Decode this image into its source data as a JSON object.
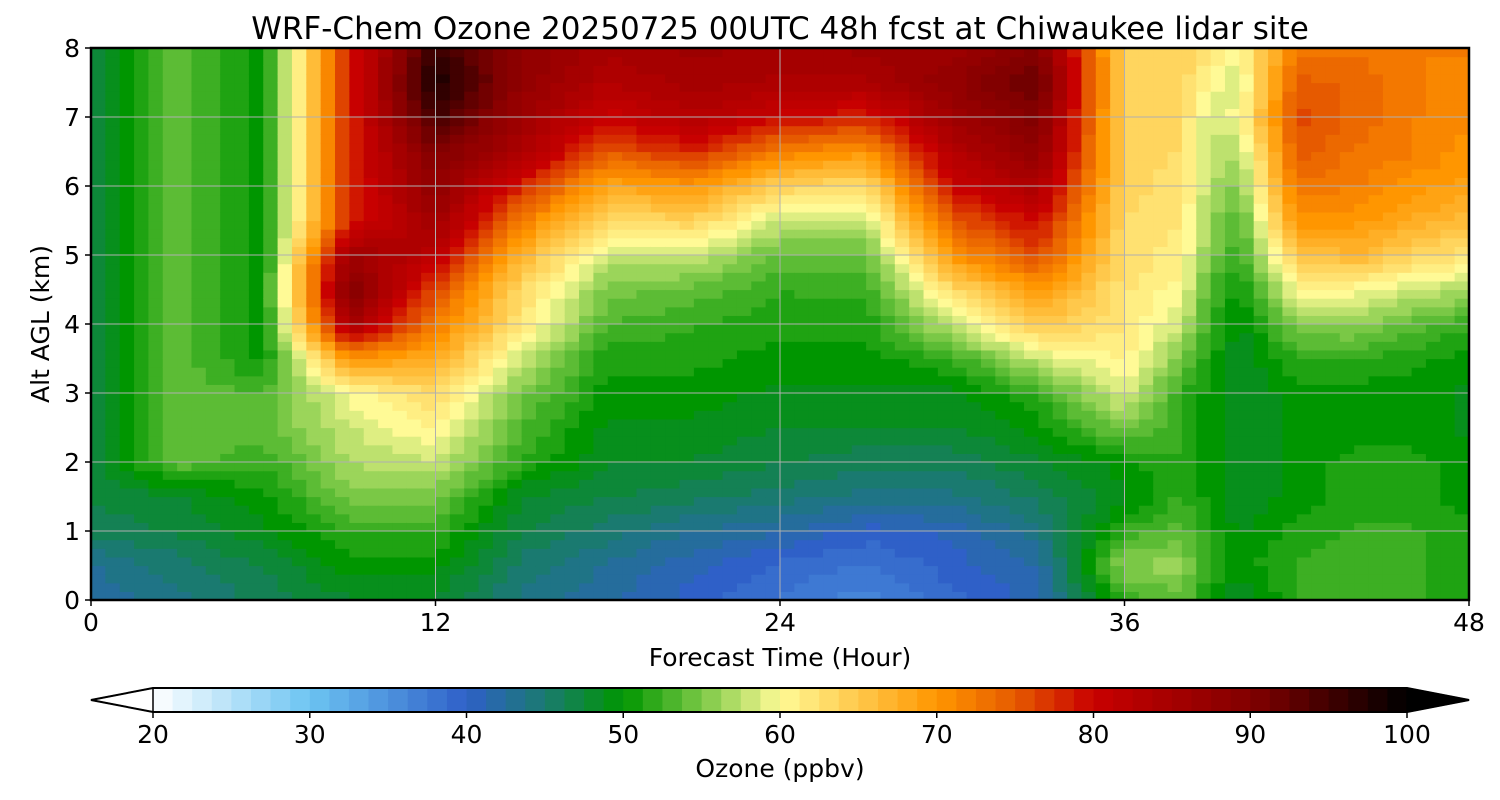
{
  "chart_data": {
    "type": "heatmap",
    "title": "WRF-Chem Ozone  20250725 00UTC 48h fcst at Chiwaukee lidar site",
    "xlabel": "Forecast Time (Hour)",
    "ylabel": "Alt AGL (km)",
    "xlim": [
      0,
      48
    ],
    "ylim": [
      0,
      8
    ],
    "xticks": [
      "0",
      "12",
      "24",
      "36",
      "48"
    ],
    "yticks": [
      "0",
      "1",
      "2",
      "3",
      "4",
      "5",
      "6",
      "7",
      "8"
    ],
    "grid": true,
    "colorbar": {
      "label": "Ozone  (ppbv)",
      "range": [
        20,
        100
      ],
      "extend": "both",
      "orientation": "horizontal",
      "ticks": [
        "20",
        "30",
        "40",
        "50",
        "60",
        "70",
        "80",
        "90",
        "100"
      ],
      "stops": [
        {
          "value": 20,
          "color": "#ffffff"
        },
        {
          "value": 30,
          "color": "#6cc4f2"
        },
        {
          "value": 40,
          "color": "#2f60c8"
        },
        {
          "value": 45,
          "color": "#1a7a70"
        },
        {
          "value": 50,
          "color": "#009600"
        },
        {
          "value": 55,
          "color": "#7ac846"
        },
        {
          "value": 60,
          "color": "#fffa96"
        },
        {
          "value": 70,
          "color": "#ff9600"
        },
        {
          "value": 75,
          "color": "#e65a00"
        },
        {
          "value": 80,
          "color": "#c80000"
        },
        {
          "value": 90,
          "color": "#820000"
        },
        {
          "value": 100,
          "color": "#000000"
        }
      ]
    },
    "x": [
      0,
      3,
      6,
      9,
      12,
      15,
      18,
      21,
      24,
      27,
      30,
      33,
      36,
      38,
      39,
      40,
      42,
      44,
      46,
      48
    ],
    "y": [
      0,
      0.5,
      1,
      1.5,
      2,
      2.5,
      3,
      3.5,
      4,
      4.5,
      5,
      5.5,
      6,
      6.5,
      7,
      7.5,
      8
    ],
    "z": [
      [
        42,
        43,
        46,
        47
      ],
      [
        44,
        45,
        47,
        48,
        54
      ],
      [
        46,
        47,
        49,
        50,
        52,
        54,
        53,
        50
      ],
      [
        48,
        50,
        52,
        55,
        57,
        58,
        60,
        70,
        85,
        90,
        86,
        78
      ],
      [
        48,
        50,
        52,
        55,
        58,
        61,
        63,
        68,
        72,
        76,
        82,
        86,
        88,
        90,
        95,
        98,
        96
      ],
      [
        44,
        45,
        47,
        48,
        52,
        53,
        55,
        58,
        62,
        63,
        67,
        72,
        78,
        84,
        86,
        88,
        88
      ],
      [
        42,
        43,
        45,
        47,
        48,
        49,
        50,
        51,
        53,
        55,
        58,
        63,
        68,
        75,
        80,
        83,
        85
      ],
      [
        40,
        41,
        43,
        46,
        48,
        49,
        50,
        51,
        52,
        54,
        58,
        64,
        70,
        78,
        83,
        85,
        86
      ],
      [
        38,
        39,
        42,
        45,
        47,
        48,
        49,
        50,
        51,
        52,
        54,
        58,
        64,
        72,
        80,
        84,
        85
      ],
      [
        36,
        38,
        40,
        44,
        46,
        48,
        49,
        50,
        51,
        52,
        54,
        58,
        63,
        70,
        78,
        84,
        86
      ],
      [
        39,
        40,
        41,
        44,
        46,
        48,
        49,
        52,
        58,
        63,
        70,
        75,
        80,
        83,
        86,
        88,
        86
      ],
      [
        41,
        42,
        44,
        46,
        48,
        50,
        52,
        58,
        65,
        70,
        76,
        80,
        84,
        88,
        90,
        92,
        90
      ],
      [
        52,
        56,
        52,
        49,
        50,
        55,
        59,
        61,
        62,
        62,
        63,
        63,
        64,
        64,
        64,
        64,
        64
      ],
      [
        54,
        56,
        54,
        52,
        52,
        52,
        52,
        55,
        58,
        60,
        61,
        62,
        62,
        63,
        63,
        64,
        64
      ],
      [
        50,
        52,
        51,
        50,
        50,
        50,
        50,
        51,
        52,
        53,
        55,
        56,
        57,
        58,
        58,
        60,
        62
      ],
      [
        48,
        50,
        49,
        48,
        48,
        48,
        48,
        48,
        49,
        50,
        52,
        53,
        55,
        57,
        60,
        58,
        60
      ],
      [
        52,
        52,
        51,
        50,
        50,
        50,
        50,
        52,
        55,
        60,
        65,
        70,
        73,
        75,
        76,
        75,
        72
      ],
      [
        53,
        53,
        52,
        51,
        51,
        50,
        50,
        52,
        56,
        60,
        67,
        70,
        72,
        73,
        74,
        74,
        73
      ],
      [
        52,
        52,
        52,
        51,
        51,
        50,
        50,
        51,
        54,
        58,
        64,
        68,
        70,
        72,
        72,
        72,
        72
      ],
      [
        51,
        51,
        51,
        50,
        50,
        49,
        49,
        50,
        52,
        57,
        62,
        66,
        69,
        70,
        71,
        71,
        72
      ]
    ]
  }
}
